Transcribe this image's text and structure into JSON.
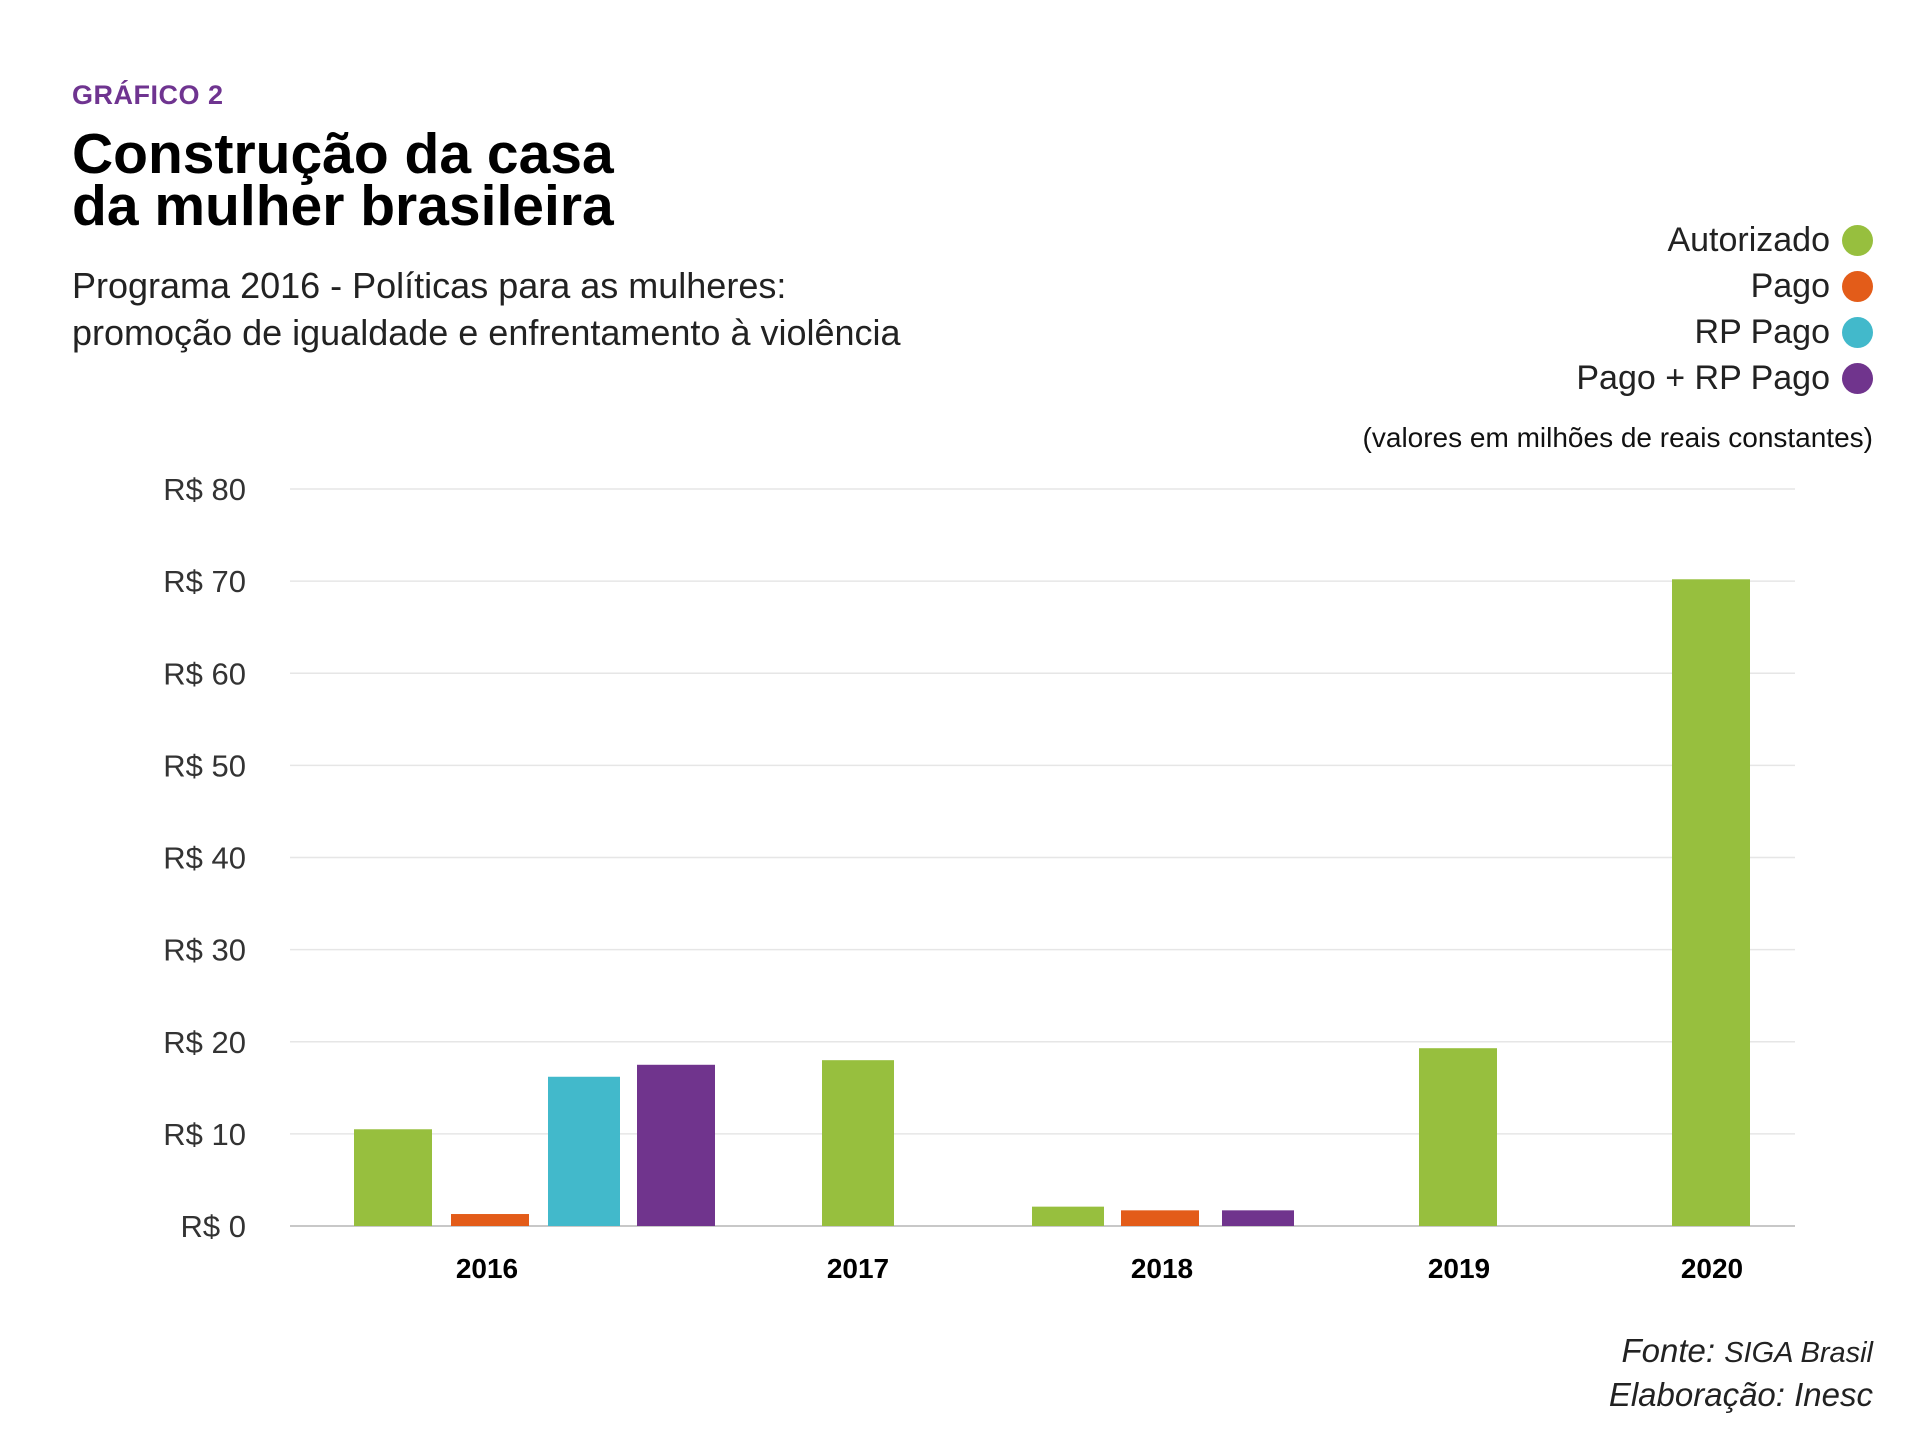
{
  "kicker": "GRÁFICO 2",
  "title": {
    "line1": "Construção da casa",
    "line2": "da mulher brasileira"
  },
  "subtitle": {
    "line1": "Programa 2016 - Políticas para as mulheres:",
    "line2": "promoção de igualdade e enfrentamento à violência"
  },
  "legend": [
    {
      "label": "Autorizado",
      "color": "#97bf3e"
    },
    {
      "label": "Pago",
      "color": "#e35c19"
    },
    {
      "label": "RP Pago",
      "color": "#42b9cb"
    },
    {
      "label": "Pago + RP Pago",
      "color": "#70348d"
    }
  ],
  "units_note": "(valores em milhões de reais constantes)",
  "source": {
    "fonte_label": "Fonte:",
    "fonte_value": "SIGA Brasil",
    "elaboracao": "Elaboração: Inesc"
  },
  "chart_data": {
    "type": "bar",
    "categories": [
      "2016",
      "2017",
      "2018",
      "2019",
      "2020"
    ],
    "series": [
      {
        "name": "Autorizado",
        "color": "#97bf3e",
        "values": [
          10.5,
          18.0,
          2.1,
          19.3,
          70.2
        ]
      },
      {
        "name": "Pago",
        "color": "#e35c19",
        "values": [
          1.3,
          null,
          1.7,
          null,
          null
        ]
      },
      {
        "name": "RP Pago",
        "color": "#42b9cb",
        "values": [
          16.2,
          null,
          null,
          null,
          null
        ]
      },
      {
        "name": "Pago + RP Pago",
        "color": "#70348d",
        "values": [
          17.5,
          null,
          1.7,
          null,
          null
        ]
      }
    ],
    "ylim": [
      0,
      80
    ],
    "yticks": [
      0,
      10,
      20,
      30,
      40,
      50,
      60,
      70,
      80
    ],
    "ytick_prefix": "R$ ",
    "grid": true
  }
}
